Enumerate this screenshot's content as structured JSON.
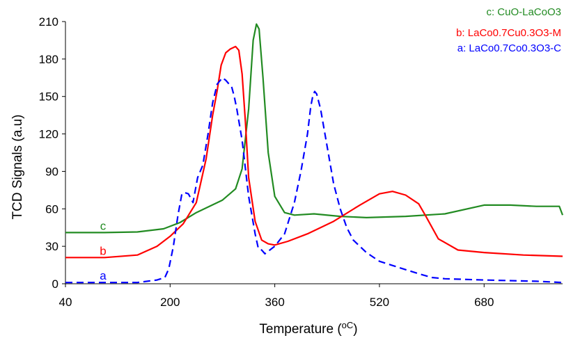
{
  "chart_data": {
    "type": "line",
    "title": "",
    "xlabel": "Temperature (",
    "xlabel_unit": "oC",
    "xlabel_suffix": ")",
    "ylabel": "TCD Signals (a.u)",
    "xlim": [
      40,
      800
    ],
    "ylim": [
      0,
      210
    ],
    "x_ticks": [
      40,
      200,
      360,
      520,
      680
    ],
    "y_ticks": [
      0,
      30,
      60,
      90,
      120,
      150,
      180,
      210
    ],
    "grid": false,
    "legend_position": "top-right",
    "series": [
      {
        "name": "c: CuO-LaCoO3",
        "curve_label": "c",
        "color": "#228B22",
        "dash": "solid",
        "x": [
          40,
          100,
          150,
          190,
          215,
          240,
          260,
          280,
          300,
          310,
          320,
          327,
          332,
          336,
          342,
          350,
          360,
          375,
          390,
          420,
          460,
          500,
          560,
          620,
          680,
          720,
          760,
          795,
          800
        ],
        "y": [
          41,
          41,
          41.5,
          44,
          49,
          57,
          62,
          67,
          76,
          92,
          140,
          195,
          208,
          204,
          165,
          105,
          70,
          57,
          55,
          56,
          54,
          53,
          54,
          56,
          63,
          63,
          62,
          62,
          55
        ]
      },
      {
        "name": "b: LaCo0.7Cu0.3O3-M",
        "curve_label": "b",
        "color": "#FF0000",
        "dash": "solid",
        "x": [
          40,
          100,
          150,
          180,
          200,
          220,
          240,
          255,
          265,
          272,
          278,
          285,
          292,
          300,
          305,
          310,
          315,
          320,
          330,
          340,
          350,
          360,
          380,
          410,
          450,
          490,
          520,
          540,
          560,
          580,
          590,
          610,
          640,
          680,
          740,
          800
        ],
        "y": [
          21,
          21,
          23,
          30,
          38,
          48,
          65,
          100,
          135,
          155,
          175,
          185,
          188,
          190,
          187,
          168,
          130,
          85,
          50,
          35,
          32,
          31,
          34,
          40,
          50,
          63,
          72,
          74,
          71,
          64,
          55,
          36,
          27,
          25,
          23,
          22
        ]
      },
      {
        "name": "a: LaCo0.7Co0.3O3-C",
        "curve_label": "a",
        "color": "#0000FF",
        "dash": "dashed",
        "x": [
          40,
          100,
          150,
          180,
          192,
          198,
          205,
          212,
          218,
          222,
          228,
          235,
          242,
          250,
          258,
          265,
          272,
          280,
          285,
          290,
          294,
          298,
          302,
          310,
          320,
          330,
          335,
          340,
          345,
          350,
          360,
          375,
          390,
          400,
          410,
          415,
          418,
          421,
          424,
          430,
          440,
          450,
          460,
          470,
          480,
          500,
          520,
          550,
          580,
          600,
          620,
          680,
          760,
          800
        ],
        "y": [
          1,
          1,
          1,
          3,
          5,
          12,
          30,
          55,
          72,
          73,
          72,
          65,
          85,
          95,
          120,
          145,
          160,
          165,
          163,
          160,
          158,
          150,
          140,
          115,
          70,
          40,
          28,
          27,
          24,
          26,
          30,
          40,
          65,
          90,
          120,
          142,
          150,
          154,
          152,
          140,
          110,
          80,
          60,
          45,
          35,
          25,
          18,
          13,
          8,
          5,
          4,
          3,
          2,
          1
        ]
      }
    ]
  }
}
